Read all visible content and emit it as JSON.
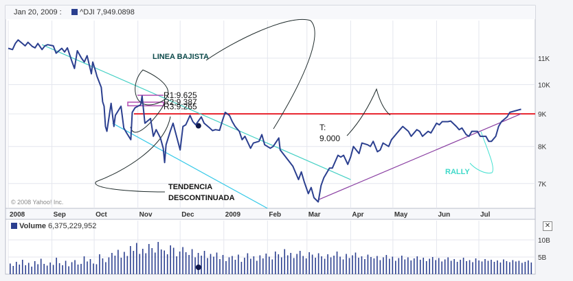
{
  "header": {
    "date_label": "Jan 20, 2009 :",
    "series_label": "^DJI",
    "close_value": "7,949.0898",
    "copyright": "© 2008 Yahoo! Inc."
  },
  "volume_panel": {
    "label": "Volume",
    "value": "6,375,229,952",
    "y_ticks": [
      "10B",
      "5B"
    ],
    "close_button_glyph": "✕",
    "bars": [
      3.1,
      2.4,
      3.6,
      2.8,
      4.2,
      2.6,
      3.3,
      2.2,
      3.8,
      2.9,
      4.5,
      3.0,
      2.5,
      3.4,
      2.7,
      4.8,
      3.2,
      2.6,
      3.9,
      2.3,
      3.5,
      4.1,
      2.8,
      3.0,
      5.2,
      3.7,
      4.4,
      3.1,
      2.9,
      5.8,
      4.6,
      3.5,
      4.9,
      6.2,
      5.4,
      7.1,
      4.8,
      6.5,
      5.3,
      8.2,
      6.8,
      9.1,
      5.9,
      7.4,
      6.1,
      8.8,
      7.6,
      6.3,
      9.4,
      7.2,
      6.9,
      5.8,
      8.4,
      7.7,
      5.2,
      6.6,
      7.9,
      6.4,
      5.6,
      7.3,
      4.9,
      6.2,
      5.4,
      6.8,
      4.7,
      5.9,
      5.1,
      6.3,
      4.4,
      5.6,
      3.8,
      4.9,
      5.3,
      4.2,
      5.7,
      3.6,
      4.8,
      6.1,
      4.5,
      5.2,
      3.9,
      5.5,
      4.6,
      6.0,
      5.1,
      4.3,
      6.6,
      5.8,
      4.9,
      7.3,
      5.5,
      6.2,
      4.7,
      5.9,
      6.8,
      5.3,
      4.6,
      6.4,
      5.7,
      4.8,
      6.1,
      5.2,
      4.5,
      5.8,
      4.9,
      5.4,
      6.6,
      5.1,
      4.3,
      5.9,
      4.7,
      5.5,
      6.3,
      4.8,
      5.2,
      4.4,
      5.7,
      5.0,
      4.6,
      5.3,
      4.1,
      4.9,
      5.6,
      4.5,
      5.1,
      3.9,
      4.7,
      5.4,
      4.3,
      4.9,
      4.0,
      4.6,
      5.2,
      4.2,
      4.8,
      3.8,
      4.5,
      5.0,
      4.1,
      4.7,
      3.7,
      4.3,
      4.9,
      3.9,
      4.4,
      3.6,
      4.2,
      4.8,
      3.8,
      4.1,
      3.5,
      4.6,
      4.0,
      3.7,
      4.4,
      3.9,
      4.2,
      3.6,
      4.0,
      3.4,
      4.3,
      3.8,
      3.5,
      4.1,
      3.7,
      3.9,
      3.3,
      3.6,
      4.0,
      3.4
    ]
  },
  "chart_data": {
    "type": "line",
    "title": "^DJI",
    "y_scale": "log",
    "ylim": [
      6400,
      12600
    ],
    "y_ticks": [
      {
        "label": "11K",
        "value": 11000
      },
      {
        "label": "10K",
        "value": 10000
      },
      {
        "label": "9K",
        "value": 9000
      },
      {
        "label": "8K",
        "value": 8000
      },
      {
        "label": "7K",
        "value": 7000
      }
    ],
    "x_range": [
      "2008-08-01",
      "2009-08-10"
    ],
    "x_ticks": [
      {
        "label": "2008",
        "date": "2008-08-01"
      },
      {
        "label": "Sep",
        "date": "2008-09-01"
      },
      {
        "label": "Oct",
        "date": "2008-10-01"
      },
      {
        "label": "Nov",
        "date": "2008-11-01"
      },
      {
        "label": "Dec",
        "date": "2008-12-01"
      },
      {
        "label": "2009",
        "date": "2009-01-01"
      },
      {
        "label": "Feb",
        "date": "2009-02-01"
      },
      {
        "label": "Mar",
        "date": "2009-03-01"
      },
      {
        "label": "Apr",
        "date": "2009-04-01"
      },
      {
        "label": "May",
        "date": "2009-05-01"
      },
      {
        "label": "Jun",
        "date": "2009-06-01"
      },
      {
        "label": "Jul",
        "date": "2009-07-01"
      }
    ],
    "grid": true,
    "series": [
      {
        "name": "^DJI",
        "color": "#2b3f8f",
        "points": [
          [
            "2008-08-01",
            11400
          ],
          [
            "2008-08-04",
            11350
          ],
          [
            "2008-08-06",
            11600
          ],
          [
            "2008-08-08",
            11750
          ],
          [
            "2008-08-11",
            11600
          ],
          [
            "2008-08-13",
            11500
          ],
          [
            "2008-08-15",
            11650
          ],
          [
            "2008-08-18",
            11480
          ],
          [
            "2008-08-20",
            11420
          ],
          [
            "2008-08-22",
            11600
          ],
          [
            "2008-08-25",
            11350
          ],
          [
            "2008-08-27",
            11500
          ],
          [
            "2008-08-29",
            11550
          ],
          [
            "2008-09-02",
            11500
          ],
          [
            "2008-09-04",
            11200
          ],
          [
            "2008-09-08",
            11400
          ],
          [
            "2008-09-10",
            11250
          ],
          [
            "2008-09-12",
            11420
          ],
          [
            "2008-09-15",
            10900
          ],
          [
            "2008-09-17",
            10600
          ],
          [
            "2008-09-19",
            11300
          ],
          [
            "2008-09-22",
            11000
          ],
          [
            "2008-09-24",
            10850
          ],
          [
            "2008-09-26",
            11100
          ],
          [
            "2008-09-29",
            10400
          ],
          [
            "2008-09-30",
            10850
          ],
          [
            "2008-10-02",
            10500
          ],
          [
            "2008-10-03",
            10300
          ],
          [
            "2008-10-06",
            9900
          ],
          [
            "2008-10-07",
            9400
          ],
          [
            "2008-10-08",
            9250
          ],
          [
            "2008-10-09",
            8600
          ],
          [
            "2008-10-10",
            8450
          ],
          [
            "2008-10-13",
            9350
          ],
          [
            "2008-10-15",
            8600
          ],
          [
            "2008-10-16",
            8950
          ],
          [
            "2008-10-20",
            9250
          ],
          [
            "2008-10-22",
            8550
          ],
          [
            "2008-10-24",
            8400
          ],
          [
            "2008-10-27",
            8200
          ],
          [
            "2008-10-28",
            9050
          ],
          [
            "2008-10-30",
            9200
          ],
          [
            "2008-11-03",
            9300
          ],
          [
            "2008-11-04",
            9600
          ],
          [
            "2008-11-06",
            8700
          ],
          [
            "2008-11-10",
            8850
          ],
          [
            "2008-11-12",
            8300
          ],
          [
            "2008-11-14",
            8500
          ],
          [
            "2008-11-17",
            8250
          ],
          [
            "2008-11-19",
            7950
          ],
          [
            "2008-11-20",
            7550
          ],
          [
            "2008-11-21",
            8050
          ],
          [
            "2008-11-24",
            8450
          ],
          [
            "2008-11-26",
            8700
          ],
          [
            "2008-12-01",
            7900
          ],
          [
            "2008-12-03",
            8600
          ],
          [
            "2008-12-05",
            8650
          ],
          [
            "2008-12-08",
            8950
          ],
          [
            "2008-12-10",
            8750
          ],
          [
            "2008-12-12",
            8650
          ],
          [
            "2008-12-16",
            8900
          ],
          [
            "2008-12-18",
            8700
          ],
          [
            "2008-12-22",
            8550
          ],
          [
            "2008-12-24",
            8470
          ],
          [
            "2008-12-26",
            8500
          ],
          [
            "2008-12-29",
            8480
          ],
          [
            "2008-12-31",
            8780
          ],
          [
            "2009-01-02",
            9050
          ],
          [
            "2009-01-05",
            8950
          ],
          [
            "2009-01-07",
            8750
          ],
          [
            "2009-01-09",
            8600
          ],
          [
            "2009-01-12",
            8450
          ],
          [
            "2009-01-14",
            8200
          ],
          [
            "2009-01-16",
            8300
          ],
          [
            "2009-01-20",
            7950
          ],
          [
            "2009-01-22",
            8100
          ],
          [
            "2009-01-26",
            8150
          ],
          [
            "2009-01-28",
            8350
          ],
          [
            "2009-01-30",
            8050
          ],
          [
            "2009-02-03",
            7950
          ],
          [
            "2009-02-05",
            8000
          ],
          [
            "2009-02-09",
            8250
          ],
          [
            "2009-02-10",
            7900
          ],
          [
            "2009-02-12",
            7800
          ],
          [
            "2009-02-17",
            7550
          ],
          [
            "2009-02-19",
            7450
          ],
          [
            "2009-02-23",
            7100
          ],
          [
            "2009-02-25",
            7300
          ],
          [
            "2009-02-27",
            7050
          ],
          [
            "2009-03-02",
            6750
          ],
          [
            "2009-03-04",
            6900
          ],
          [
            "2009-03-06",
            6650
          ],
          [
            "2009-03-09",
            6550
          ],
          [
            "2009-03-11",
            6950
          ],
          [
            "2009-03-13",
            7150
          ],
          [
            "2009-03-17",
            7400
          ],
          [
            "2009-03-19",
            7400
          ],
          [
            "2009-03-23",
            7750
          ],
          [
            "2009-03-25",
            7700
          ],
          [
            "2009-03-27",
            7750
          ],
          [
            "2009-03-30",
            7500
          ],
          [
            "2009-04-01",
            7700
          ],
          [
            "2009-04-03",
            8000
          ],
          [
            "2009-04-07",
            7800
          ],
          [
            "2009-04-09",
            8100
          ],
          [
            "2009-04-13",
            8050
          ],
          [
            "2009-04-15",
            8000
          ],
          [
            "2009-04-17",
            8150
          ],
          [
            "2009-04-20",
            7850
          ],
          [
            "2009-04-22",
            7900
          ],
          [
            "2009-04-24",
            8100
          ],
          [
            "2009-04-28",
            8000
          ],
          [
            "2009-04-30",
            8200
          ],
          [
            "2009-05-04",
            8400
          ],
          [
            "2009-05-06",
            8500
          ],
          [
            "2009-05-08",
            8600
          ],
          [
            "2009-05-12",
            8450
          ],
          [
            "2009-05-14",
            8300
          ],
          [
            "2009-05-18",
            8500
          ],
          [
            "2009-05-20",
            8450
          ],
          [
            "2009-05-22",
            8300
          ],
          [
            "2009-05-26",
            8450
          ],
          [
            "2009-05-28",
            8400
          ],
          [
            "2009-06-01",
            8700
          ],
          [
            "2009-06-03",
            8650
          ],
          [
            "2009-06-05",
            8750
          ],
          [
            "2009-06-09",
            8750
          ],
          [
            "2009-06-11",
            8770
          ],
          [
            "2009-06-15",
            8600
          ],
          [
            "2009-06-17",
            8500
          ],
          [
            "2009-06-19",
            8550
          ],
          [
            "2009-06-22",
            8350
          ],
          [
            "2009-06-24",
            8300
          ],
          [
            "2009-06-26",
            8450
          ],
          [
            "2009-06-30",
            8450
          ],
          [
            "2009-07-02",
            8300
          ],
          [
            "2009-07-06",
            8300
          ],
          [
            "2009-07-08",
            8150
          ],
          [
            "2009-07-10",
            8150
          ],
          [
            "2009-07-13",
            8300
          ],
          [
            "2009-07-15",
            8600
          ],
          [
            "2009-07-17",
            8750
          ],
          [
            "2009-07-21",
            8900
          ],
          [
            "2009-07-23",
            9050
          ],
          [
            "2009-07-27",
            9100
          ],
          [
            "2009-07-31",
            9150
          ]
        ]
      }
    ],
    "annotations": {
      "resistance_labels": [
        "R1:9.625",
        "R2:9.387",
        "R3:9.265"
      ],
      "text": [
        "LINEA BAJISTA",
        "T:",
        "9.000",
        "TENDENCIA",
        "DESCONTINUADA",
        "RALLY"
      ],
      "horizontal_line": {
        "value": 9000,
        "color": "#e8212b"
      },
      "downtrend_line": {
        "from": [
          "2008-08-25",
          11550
        ],
        "to": [
          "2009-04-01",
          7100
        ],
        "color": "#44d0c4"
      },
      "channel_line": {
        "from": [
          "2008-10-14",
          8700
        ],
        "to": [
          "2009-02-01",
          6400
        ],
        "color": "#35c9e8"
      },
      "uptrend_line": {
        "from": [
          "2009-03-09",
          6600
        ],
        "to": [
          "2009-07-31",
          9000
        ],
        "color": "#8a3fa2"
      },
      "marker_dots": [
        [
          "2008-12-14",
          8620
        ],
        [
          "2008-12-14",
          null
        ]
      ]
    }
  }
}
